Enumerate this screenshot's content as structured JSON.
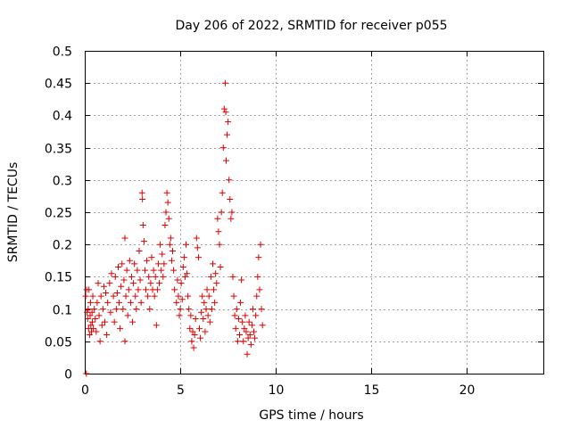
{
  "chart_data": {
    "type": "scatter",
    "title": "Day 206 of 2022, SRMTID for receiver p055",
    "xlabel": "GPS time / hours",
    "ylabel": "SRMTID / TECUs",
    "xlim": [
      0,
      24
    ],
    "ylim": [
      0,
      0.5
    ],
    "xticks": [
      0,
      5,
      10,
      15,
      20
    ],
    "xtick_labels": [
      "0",
      "5",
      "10",
      "15",
      "20"
    ],
    "yticks": [
      0,
      0.05,
      0.1,
      0.15,
      0.2,
      0.25,
      0.3,
      0.35,
      0.4,
      0.45,
      0.5
    ],
    "ytick_labels": [
      "0",
      "0.05",
      "0.1",
      "0.15",
      "0.2",
      "0.25",
      "0.3",
      "0.35",
      "0.4",
      "0.45",
      "0.5"
    ],
    "grid": true,
    "legend": "none",
    "marker": "plus",
    "color": "#e00000",
    "series": [
      {
        "name": "SRMTID",
        "points": [
          [
            0.05,
            0.12
          ],
          [
            0.08,
            0.0
          ],
          [
            0.1,
            0.13
          ],
          [
            0.12,
            0.095
          ],
          [
            0.15,
            0.085
          ],
          [
            0.18,
            0.1
          ],
          [
            0.2,
            0.07
          ],
          [
            0.22,
            0.13
          ],
          [
            0.25,
            0.06
          ],
          [
            0.28,
            0.09
          ],
          [
            0.3,
            0.11
          ],
          [
            0.32,
            0.075
          ],
          [
            0.35,
            0.065
          ],
          [
            0.38,
            0.095
          ],
          [
            0.4,
            0.08
          ],
          [
            0.42,
            0.12
          ],
          [
            0.45,
            0.07
          ],
          [
            0.5,
            0.1
          ],
          [
            0.55,
            0.085
          ],
          [
            0.6,
            0.065
          ],
          [
            0.65,
            0.11
          ],
          [
            0.7,
            0.14
          ],
          [
            0.75,
            0.09
          ],
          [
            0.8,
            0.05
          ],
          [
            0.85,
            0.12
          ],
          [
            0.9,
            0.075
          ],
          [
            0.95,
            0.1
          ],
          [
            1.0,
            0.135
          ],
          [
            1.05,
            0.08
          ],
          [
            1.1,
            0.125
          ],
          [
            1.15,
            0.06
          ],
          [
            1.2,
            0.11
          ],
          [
            1.3,
            0.14
          ],
          [
            1.35,
            0.095
          ],
          [
            1.4,
            0.155
          ],
          [
            1.5,
            0.12
          ],
          [
            1.55,
            0.08
          ],
          [
            1.6,
            0.15
          ],
          [
            1.65,
            0.1
          ],
          [
            1.7,
            0.125
          ],
          [
            1.75,
            0.165
          ],
          [
            1.8,
            0.11
          ],
          [
            1.85,
            0.07
          ],
          [
            1.9,
            0.135
          ],
          [
            1.95,
            0.17
          ],
          [
            2.0,
            0.1
          ],
          [
            2.05,
            0.145
          ],
          [
            2.1,
            0.05
          ],
          [
            2.1,
            0.21
          ],
          [
            2.15,
            0.12
          ],
          [
            2.2,
            0.16
          ],
          [
            2.25,
            0.09
          ],
          [
            2.3,
            0.13
          ],
          [
            2.35,
            0.175
          ],
          [
            2.4,
            0.11
          ],
          [
            2.45,
            0.15
          ],
          [
            2.5,
            0.08
          ],
          [
            2.55,
            0.14
          ],
          [
            2.6,
            0.17
          ],
          [
            2.65,
            0.12
          ],
          [
            2.7,
            0.1
          ],
          [
            2.75,
            0.16
          ],
          [
            2.8,
            0.13
          ],
          [
            2.85,
            0.19
          ],
          [
            2.9,
            0.145
          ],
          [
            2.95,
            0.11
          ],
          [
            3.0,
            0.28
          ],
          [
            3.02,
            0.27
          ],
          [
            3.05,
            0.23
          ],
          [
            3.1,
            0.205
          ],
          [
            3.15,
            0.16
          ],
          [
            3.2,
            0.13
          ],
          [
            3.25,
            0.175
          ],
          [
            3.3,
            0.12
          ],
          [
            3.35,
            0.15
          ],
          [
            3.4,
            0.1
          ],
          [
            3.45,
            0.14
          ],
          [
            3.5,
            0.18
          ],
          [
            3.55,
            0.13
          ],
          [
            3.6,
            0.16
          ],
          [
            3.65,
            0.12
          ],
          [
            3.7,
            0.15
          ],
          [
            3.75,
            0.075
          ],
          [
            3.8,
            0.13
          ],
          [
            3.85,
            0.17
          ],
          [
            3.9,
            0.14
          ],
          [
            3.95,
            0.2
          ],
          [
            4.0,
            0.16
          ],
          [
            4.05,
            0.185
          ],
          [
            4.1,
            0.15
          ],
          [
            4.15,
            0.17
          ],
          [
            4.2,
            0.23
          ],
          [
            4.25,
            0.25
          ],
          [
            4.3,
            0.28
          ],
          [
            4.35,
            0.265
          ],
          [
            4.4,
            0.24
          ],
          [
            4.45,
            0.2
          ],
          [
            4.5,
            0.21
          ],
          [
            4.55,
            0.175
          ],
          [
            4.6,
            0.19
          ],
          [
            4.65,
            0.16
          ],
          [
            4.7,
            0.13
          ],
          [
            4.8,
            0.11
          ],
          [
            4.85,
            0.145
          ],
          [
            4.9,
            0.12
          ],
          [
            4.95,
            0.09
          ],
          [
            5.0,
            0.1
          ],
          [
            5.05,
            0.14
          ],
          [
            5.1,
            0.115
          ],
          [
            5.15,
            0.165
          ],
          [
            5.2,
            0.18
          ],
          [
            5.25,
            0.15
          ],
          [
            5.3,
            0.2
          ],
          [
            5.35,
            0.155
          ],
          [
            5.4,
            0.12
          ],
          [
            5.45,
            0.1
          ],
          [
            5.5,
            0.07
          ],
          [
            5.55,
            0.09
          ],
          [
            5.6,
            0.05
          ],
          [
            5.65,
            0.065
          ],
          [
            5.7,
            0.04
          ],
          [
            5.75,
            0.06
          ],
          [
            5.8,
            0.085
          ],
          [
            5.85,
            0.21
          ],
          [
            5.9,
            0.195
          ],
          [
            5.95,
            0.18
          ],
          [
            6.0,
            0.07
          ],
          [
            6.05,
            0.055
          ],
          [
            6.1,
            0.095
          ],
          [
            6.15,
            0.12
          ],
          [
            6.2,
            0.085
          ],
          [
            6.25,
            0.11
          ],
          [
            6.3,
            0.065
          ],
          [
            6.35,
            0.1
          ],
          [
            6.4,
            0.13
          ],
          [
            6.45,
            0.09
          ],
          [
            6.5,
            0.12
          ],
          [
            6.55,
            0.08
          ],
          [
            6.6,
            0.15
          ],
          [
            6.65,
            0.1
          ],
          [
            6.7,
            0.17
          ],
          [
            6.75,
            0.13
          ],
          [
            6.8,
            0.11
          ],
          [
            6.85,
            0.155
          ],
          [
            6.9,
            0.14
          ],
          [
            6.95,
            0.24
          ],
          [
            7.0,
            0.22
          ],
          [
            7.05,
            0.2
          ],
          [
            7.1,
            0.165
          ],
          [
            7.15,
            0.25
          ],
          [
            7.2,
            0.28
          ],
          [
            7.25,
            0.35
          ],
          [
            7.3,
            0.41
          ],
          [
            7.35,
            0.45
          ],
          [
            7.38,
            0.405
          ],
          [
            7.4,
            0.33
          ],
          [
            7.45,
            0.37
          ],
          [
            7.5,
            0.39
          ],
          [
            7.55,
            0.3
          ],
          [
            7.6,
            0.27
          ],
          [
            7.65,
            0.24
          ],
          [
            7.7,
            0.25
          ],
          [
            7.75,
            0.15
          ],
          [
            7.8,
            0.12
          ],
          [
            7.85,
            0.09
          ],
          [
            7.9,
            0.07
          ],
          [
            7.95,
            0.1
          ],
          [
            8.0,
            0.05
          ],
          [
            8.05,
            0.085
          ],
          [
            8.1,
            0.06
          ],
          [
            8.15,
            0.11
          ],
          [
            8.2,
            0.145
          ],
          [
            8.25,
            0.08
          ],
          [
            8.3,
            0.05
          ],
          [
            8.35,
            0.07
          ],
          [
            8.4,
            0.09
          ],
          [
            8.45,
            0.065
          ],
          [
            8.5,
            0.03
          ],
          [
            8.55,
            0.055
          ],
          [
            8.6,
            0.08
          ],
          [
            8.65,
            0.06
          ],
          [
            8.7,
            0.045
          ],
          [
            8.75,
            0.075
          ],
          [
            8.8,
            0.1
          ],
          [
            8.85,
            0.065
          ],
          [
            8.9,
            0.055
          ],
          [
            8.95,
            0.09
          ],
          [
            9.0,
            0.12
          ],
          [
            9.05,
            0.15
          ],
          [
            9.1,
            0.18
          ],
          [
            9.15,
            0.13
          ],
          [
            9.2,
            0.2
          ],
          [
            9.25,
            0.1
          ],
          [
            9.3,
            0.075
          ]
        ]
      }
    ]
  }
}
